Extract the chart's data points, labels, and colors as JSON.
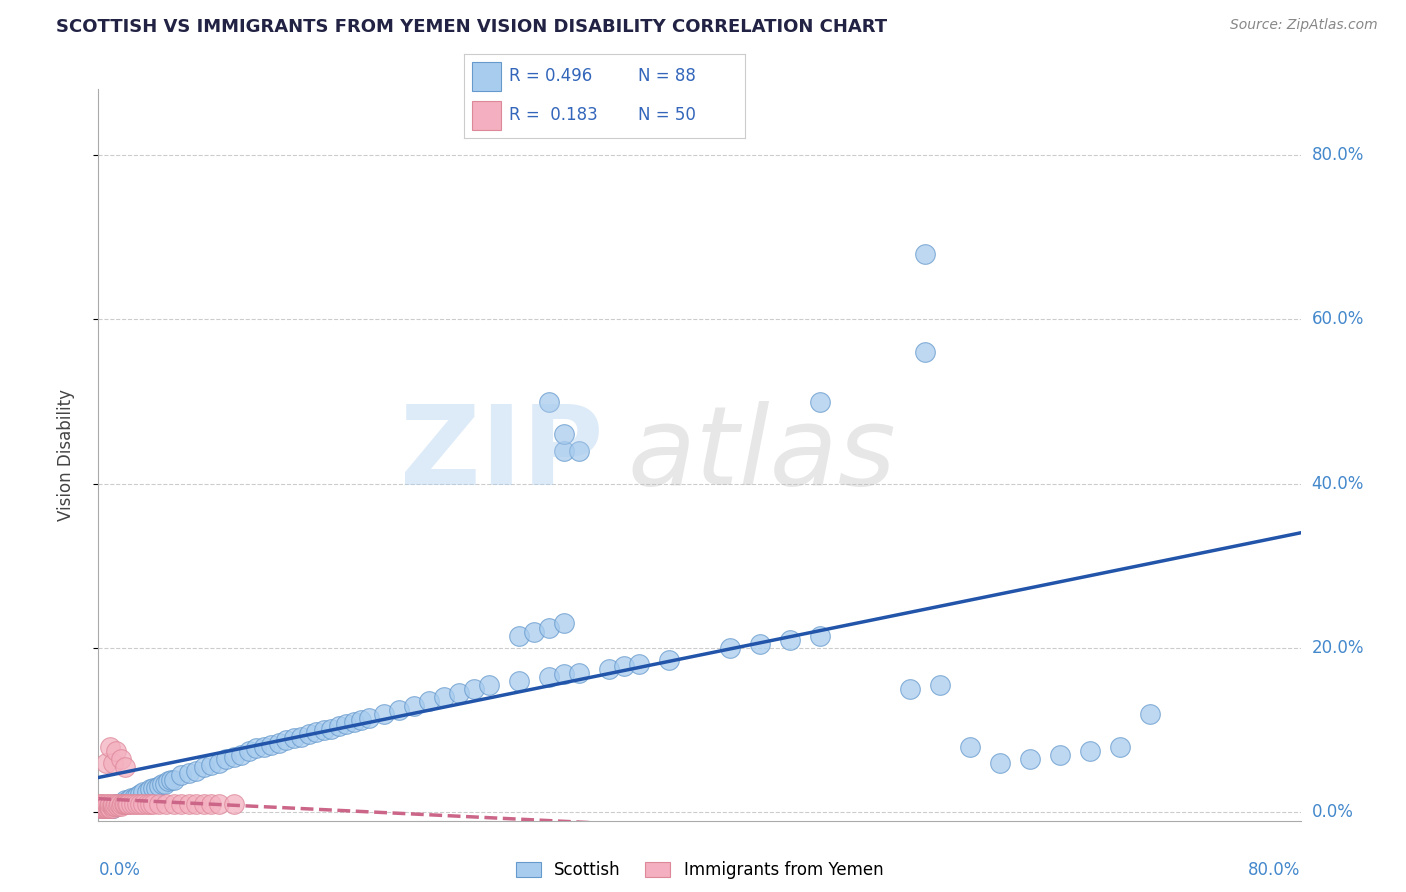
{
  "title": "SCOTTISH VS IMMIGRANTS FROM YEMEN VISION DISABILITY CORRELATION CHART",
  "source": "Source: ZipAtlas.com",
  "ylabel": "Vision Disability",
  "ytick_labels": [
    "0.0%",
    "20.0%",
    "40.0%",
    "60.0%",
    "80.0%"
  ],
  "ytick_values": [
    0.0,
    0.2,
    0.4,
    0.6,
    0.8
  ],
  "xlim": [
    0.0,
    0.8
  ],
  "ylim": [
    -0.01,
    0.88
  ],
  "scottish_R": 0.496,
  "scottish_N": 88,
  "yemen_R": 0.183,
  "yemen_N": 50,
  "scottish_color": "#a8ccee",
  "scottish_edge": "#6699cc",
  "yemen_color": "#f4b0c0",
  "yemen_edge": "#dd8899",
  "trend_scottish_color": "#2255aa",
  "trend_yemen_color": "#cc6688",
  "background_color": "#ffffff",
  "grid_color": "#cccccc",
  "scottish_x": [
    0.002,
    0.003,
    0.004,
    0.005,
    0.006,
    0.007,
    0.008,
    0.009,
    0.01,
    0.012,
    0.014,
    0.016,
    0.018,
    0.02,
    0.022,
    0.024,
    0.026,
    0.028,
    0.03,
    0.032,
    0.034,
    0.036,
    0.038,
    0.04,
    0.042,
    0.044,
    0.046,
    0.048,
    0.05,
    0.055,
    0.06,
    0.065,
    0.07,
    0.075,
    0.08,
    0.085,
    0.09,
    0.095,
    0.1,
    0.105,
    0.11,
    0.115,
    0.12,
    0.125,
    0.13,
    0.135,
    0.14,
    0.145,
    0.15,
    0.155,
    0.16,
    0.165,
    0.17,
    0.175,
    0.18,
    0.19,
    0.2,
    0.21,
    0.22,
    0.23,
    0.24,
    0.25,
    0.26,
    0.28,
    0.3,
    0.31,
    0.32,
    0.34,
    0.35,
    0.36,
    0.38,
    0.28,
    0.29,
    0.3,
    0.31,
    0.42,
    0.44,
    0.46,
    0.48,
    0.54,
    0.56,
    0.58,
    0.6,
    0.62,
    0.64,
    0.66,
    0.68,
    0.7
  ],
  "scottish_y": [
    0.005,
    0.005,
    0.005,
    0.005,
    0.005,
    0.005,
    0.005,
    0.005,
    0.005,
    0.01,
    0.01,
    0.012,
    0.015,
    0.015,
    0.018,
    0.018,
    0.02,
    0.022,
    0.025,
    0.025,
    0.028,
    0.03,
    0.03,
    0.032,
    0.035,
    0.035,
    0.038,
    0.04,
    0.04,
    0.045,
    0.048,
    0.05,
    0.055,
    0.058,
    0.06,
    0.065,
    0.068,
    0.07,
    0.075,
    0.078,
    0.08,
    0.082,
    0.085,
    0.088,
    0.09,
    0.092,
    0.095,
    0.098,
    0.1,
    0.102,
    0.105,
    0.108,
    0.11,
    0.112,
    0.115,
    0.12,
    0.125,
    0.13,
    0.135,
    0.14,
    0.145,
    0.15,
    0.155,
    0.16,
    0.165,
    0.168,
    0.17,
    0.175,
    0.178,
    0.18,
    0.185,
    0.215,
    0.22,
    0.225,
    0.23,
    0.2,
    0.205,
    0.21,
    0.215,
    0.15,
    0.155,
    0.08,
    0.06,
    0.065,
    0.07,
    0.075,
    0.08,
    0.12
  ],
  "scottish_outliers_x": [
    0.3,
    0.31,
    0.31,
    0.32,
    0.48,
    0.55,
    0.55
  ],
  "scottish_outliers_y": [
    0.5,
    0.44,
    0.46,
    0.44,
    0.5,
    0.68,
    0.56
  ],
  "yemen_x": [
    0.001,
    0.001,
    0.001,
    0.002,
    0.002,
    0.002,
    0.003,
    0.003,
    0.004,
    0.004,
    0.005,
    0.005,
    0.006,
    0.006,
    0.007,
    0.007,
    0.008,
    0.008,
    0.009,
    0.01,
    0.01,
    0.01,
    0.011,
    0.012,
    0.013,
    0.014,
    0.015,
    0.016,
    0.017,
    0.018,
    0.019,
    0.02,
    0.022,
    0.024,
    0.026,
    0.028,
    0.03,
    0.032,
    0.034,
    0.036,
    0.04,
    0.045,
    0.05,
    0.055,
    0.06,
    0.065,
    0.07,
    0.075,
    0.08,
    0.09
  ],
  "yemen_y": [
    0.005,
    0.008,
    0.01,
    0.005,
    0.008,
    0.01,
    0.005,
    0.008,
    0.005,
    0.01,
    0.005,
    0.008,
    0.005,
    0.01,
    0.005,
    0.008,
    0.005,
    0.01,
    0.008,
    0.005,
    0.008,
    0.01,
    0.008,
    0.01,
    0.008,
    0.01,
    0.008,
    0.01,
    0.01,
    0.01,
    0.01,
    0.01,
    0.01,
    0.01,
    0.01,
    0.01,
    0.01,
    0.01,
    0.01,
    0.01,
    0.01,
    0.01,
    0.01,
    0.01,
    0.01,
    0.01,
    0.01,
    0.01,
    0.01,
    0.01
  ],
  "yemen_outliers_x": [
    0.005,
    0.008,
    0.01,
    0.012,
    0.015,
    0.018
  ],
  "yemen_outliers_y": [
    0.06,
    0.08,
    0.06,
    0.075,
    0.065,
    0.055
  ]
}
